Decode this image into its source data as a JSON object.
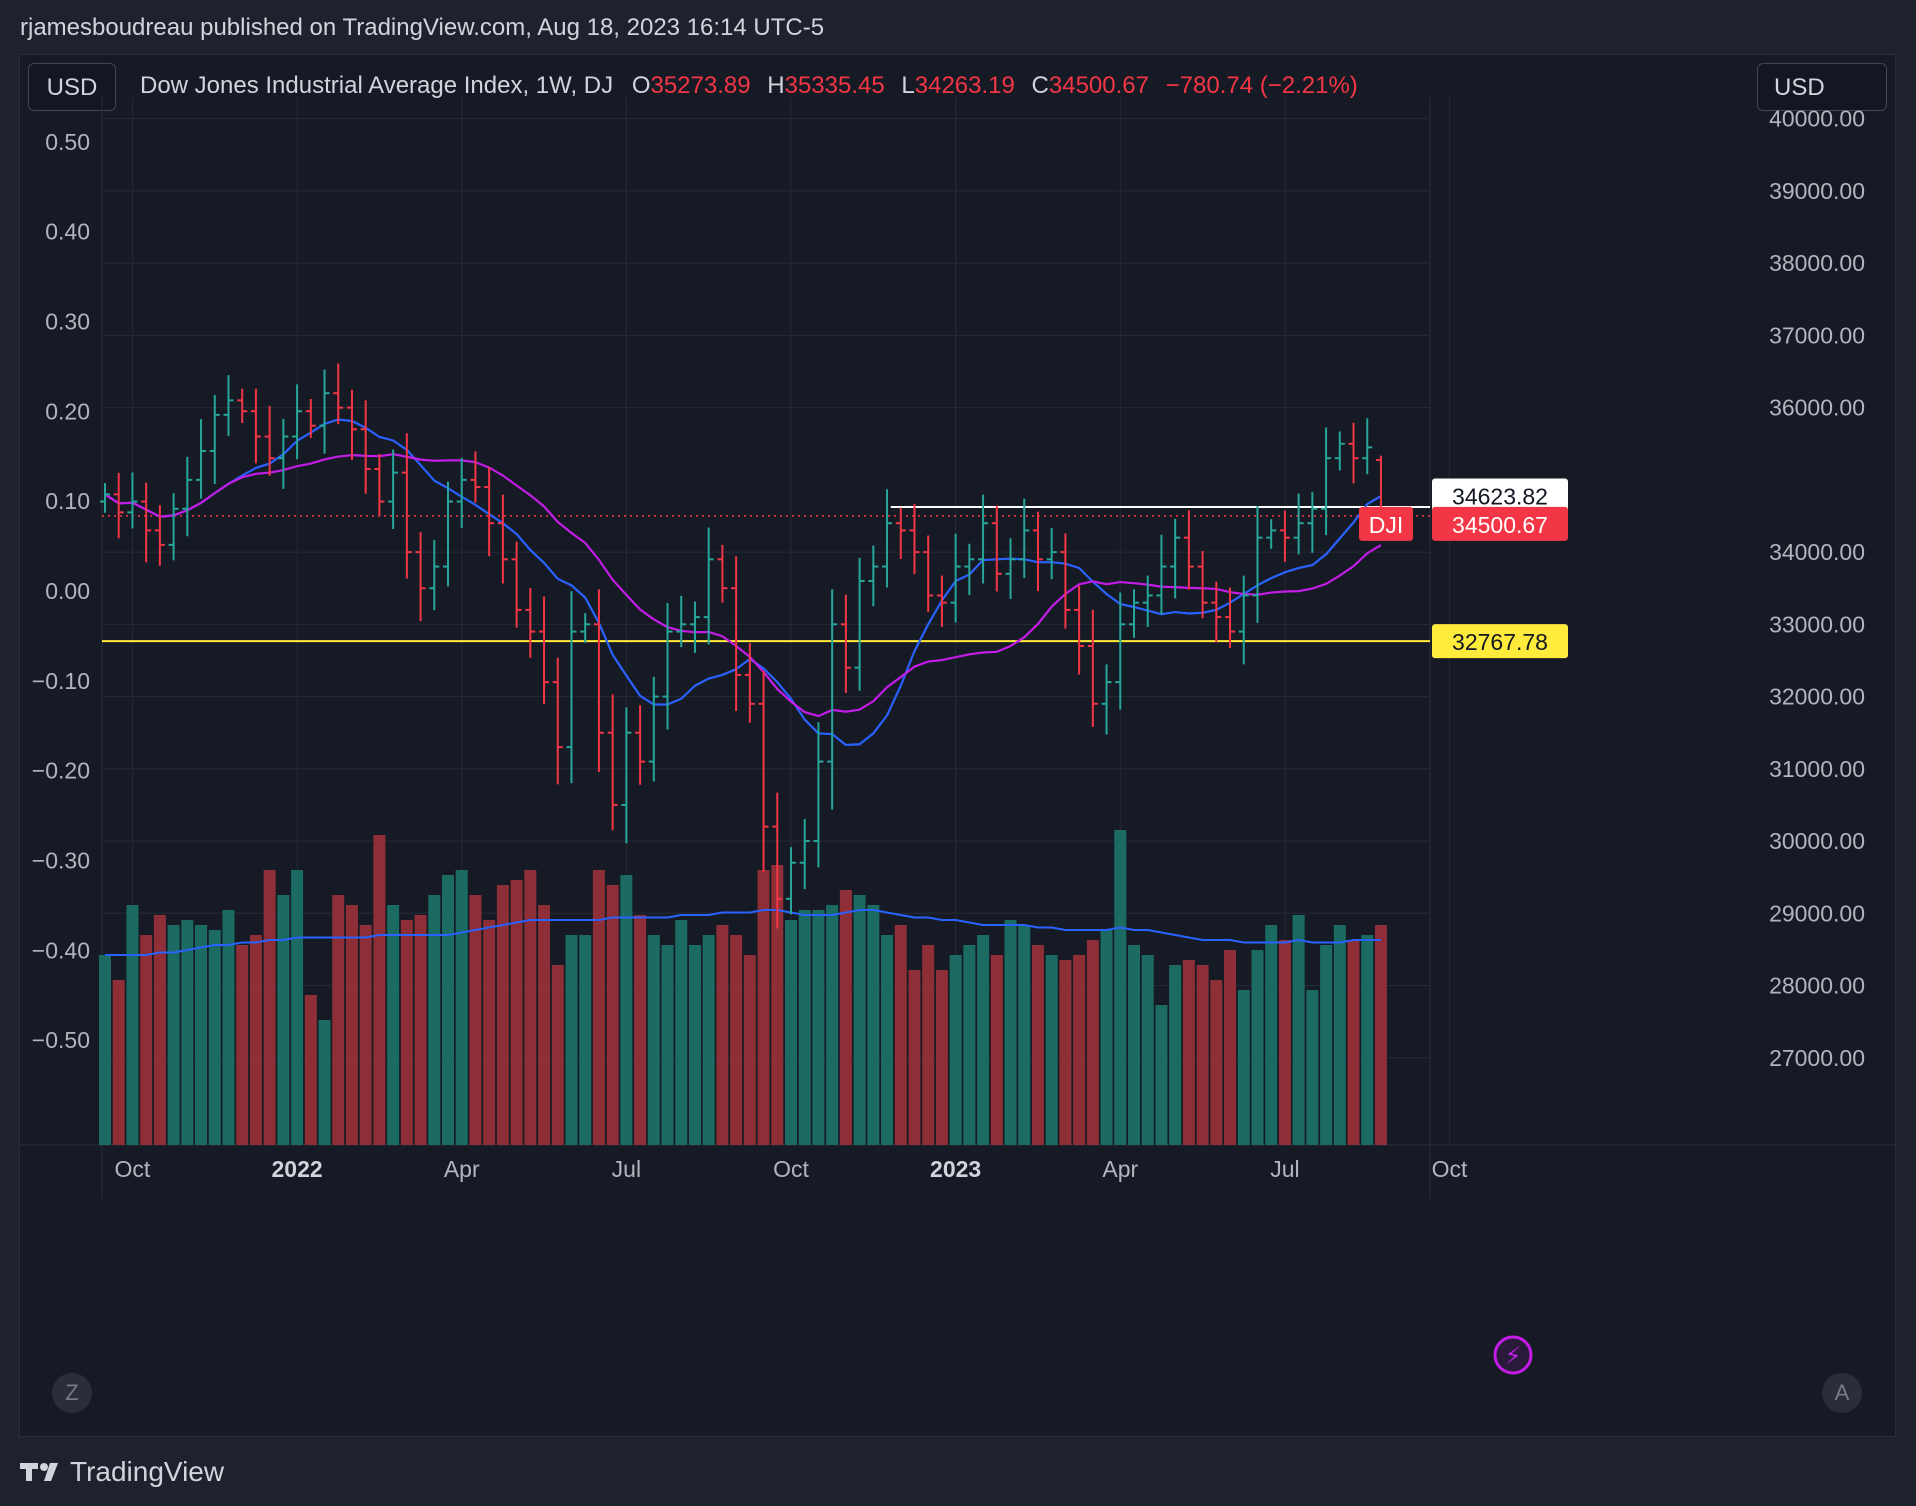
{
  "header": {
    "published_line": "rjamesboudreau published on TradingView.com, Aug 18, 2023 16:14 UTC-5"
  },
  "toolbar": {
    "currency_left": "USD",
    "currency_right": "USD"
  },
  "legend": {
    "symbol": "Dow Jones Industrial Average Index, 1W, DJ",
    "open_label": "O",
    "open_value": "35273.89",
    "high_label": "H",
    "high_value": "35335.45",
    "low_label": "L",
    "low_value": "34263.19",
    "close_label": "C",
    "close_value": "34500.67",
    "change": "−780.74 (−2.21%)"
  },
  "footer": {
    "brand": "TradingView",
    "scale_left_btn": "Z",
    "scale_right_btn": "A"
  },
  "colors": {
    "up": "#26a69a",
    "down": "#f23645",
    "ma_fast": "#2962ff",
    "ma_slow": "#c31ce7",
    "hline_support": "#ffeb3b",
    "hline_resistance": "#ffffff"
  },
  "chart_data": {
    "type": "ohlc",
    "title": "Dow Jones Industrial Average Index, 1W, DJ",
    "right_axis": {
      "ylim": [
        26000,
        40300
      ],
      "ticks": [
        "40000.00",
        "39000.00",
        "38000.00",
        "37000.00",
        "36000.00",
        "34000.00",
        "33000.00",
        "32000.00",
        "31000.00",
        "30000.00",
        "29000.00",
        "28000.00",
        "27000.00"
      ]
    },
    "left_axis": {
      "ylim": [
        -0.6,
        0.55
      ],
      "ticks": [
        "0.50",
        "0.40",
        "0.30",
        "0.20",
        "0.10",
        "0.00",
        "−0.10",
        "−0.20",
        "−0.30",
        "−0.40",
        "−0.50"
      ]
    },
    "x_axis": {
      "ticks": [
        {
          "label": "Oct",
          "week": 2,
          "bold": false
        },
        {
          "label": "2022",
          "week": 14,
          "bold": true
        },
        {
          "label": "Apr",
          "week": 26,
          "bold": false
        },
        {
          "label": "Jul",
          "week": 38,
          "bold": false
        },
        {
          "label": "Oct",
          "week": 50,
          "bold": false
        },
        {
          "label": "2023",
          "week": 62,
          "bold": true
        },
        {
          "label": "Apr",
          "week": 74,
          "bold": false
        },
        {
          "label": "Jul",
          "week": 86,
          "bold": false
        },
        {
          "label": "Oct",
          "week": 98,
          "bold": false
        }
      ]
    },
    "price_labels": {
      "resistance": "34623.82",
      "last_symbol": "DJI",
      "last": "34500.67",
      "support": "32767.78"
    },
    "horizontal_lines": [
      {
        "name": "resistance",
        "value": 34623.82,
        "from_week": 58
      },
      {
        "name": "support",
        "value": 32767.78,
        "from_week": 0
      }
    ],
    "last_price": 34500.67,
    "closes": [
      34800,
      34550,
      34700,
      34300,
      34100,
      34600,
      35000,
      35400,
      35900,
      36100,
      35950,
      35600,
      35300,
      35600,
      35950,
      35750,
      36200,
      36000,
      35700,
      35150,
      34700,
      35100,
      34000,
      33500,
      33800,
      34700,
      35000,
      34900,
      34400,
      33900,
      33200,
      32900,
      32200,
      31300,
      32900,
      33000,
      31500,
      30500,
      31500,
      31100,
      32000,
      32900,
      33000,
      33100,
      33900,
      33500,
      32300,
      31900,
      30200,
      29200,
      29700,
      30000,
      31100,
      33000,
      32400,
      33600,
      33800,
      34400,
      34300,
      34000,
      33400,
      33300,
      33800,
      33900,
      34400,
      33700,
      33900,
      34300,
      33900,
      34000,
      33200,
      32700,
      31900,
      32200,
      33000,
      33300,
      33400,
      33800,
      34200,
      33800,
      33300,
      33100,
      32900,
      33400,
      34200,
      34300,
      34200,
      34400,
      34600,
      35300,
      35500,
      35300,
      35450,
      34500
    ],
    "volume": [
      0.38,
      0.33,
      0.48,
      0.42,
      0.46,
      0.44,
      0.45,
      0.44,
      0.43,
      0.47,
      0.4,
      0.42,
      0.55,
      0.5,
      0.55,
      0.3,
      0.25,
      0.5,
      0.48,
      0.44,
      0.62,
      0.48,
      0.45,
      0.46,
      0.5,
      0.54,
      0.55,
      0.5,
      0.45,
      0.52,
      0.53,
      0.55,
      0.48,
      0.36,
      0.42,
      0.42,
      0.55,
      0.52,
      0.54,
      0.46,
      0.42,
      0.4,
      0.45,
      0.4,
      0.42,
      0.44,
      0.42,
      0.38,
      0.55,
      0.56,
      0.45,
      0.47,
      0.47,
      0.48,
      0.51,
      0.5,
      0.48,
      0.42,
      0.44,
      0.35,
      0.4,
      0.35,
      0.38,
      0.4,
      0.42,
      0.38,
      0.45,
      0.44,
      0.4,
      0.38,
      0.37,
      0.38,
      0.41,
      0.43,
      0.63,
      0.4,
      0.38,
      0.28,
      0.36,
      0.37,
      0.36,
      0.33,
      0.39,
      0.31,
      0.39,
      0.44,
      0.41,
      0.46,
      0.31,
      0.4,
      0.44,
      0.41,
      0.42,
      0.44
    ],
    "volume_ma": [
      0.38,
      0.38,
      0.38,
      0.38,
      0.385,
      0.385,
      0.39,
      0.395,
      0.4,
      0.4,
      0.405,
      0.405,
      0.41,
      0.41,
      0.415,
      0.415,
      0.415,
      0.415,
      0.415,
      0.415,
      0.42,
      0.42,
      0.42,
      0.42,
      0.42,
      0.42,
      0.425,
      0.43,
      0.435,
      0.44,
      0.445,
      0.45,
      0.45,
      0.45,
      0.45,
      0.45,
      0.45,
      0.455,
      0.455,
      0.455,
      0.455,
      0.455,
      0.46,
      0.46,
      0.46,
      0.465,
      0.465,
      0.465,
      0.47,
      0.47,
      0.465,
      0.46,
      0.46,
      0.46,
      0.465,
      0.47,
      0.47,
      0.465,
      0.46,
      0.455,
      0.455,
      0.45,
      0.45,
      0.445,
      0.44,
      0.44,
      0.44,
      0.44,
      0.435,
      0.435,
      0.43,
      0.43,
      0.43,
      0.43,
      0.435,
      0.43,
      0.43,
      0.425,
      0.42,
      0.415,
      0.41,
      0.41,
      0.41,
      0.405,
      0.405,
      0.405,
      0.405,
      0.41,
      0.405,
      0.405,
      0.405,
      0.41,
      0.41,
      0.41
    ]
  }
}
